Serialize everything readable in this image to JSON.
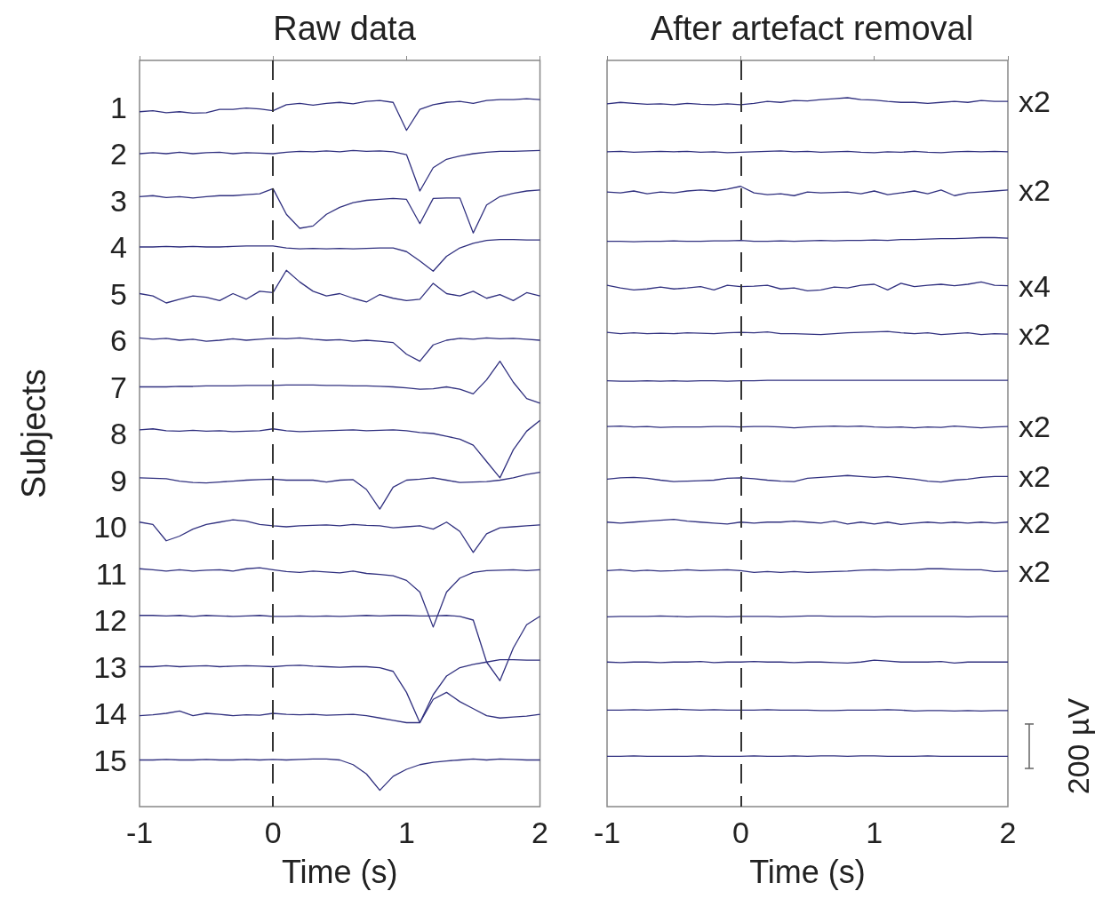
{
  "chart_data": [
    {
      "type": "line",
      "title": "Raw data",
      "xlabel": "Time (s)",
      "ylabel": "Subjects",
      "marker": "none",
      "x": [
        -1,
        -0.9,
        -0.8,
        -0.7,
        -0.6,
        -0.5,
        -0.4,
        -0.3,
        -0.2,
        -0.1,
        0,
        0.1,
        0.2,
        0.3,
        0.4,
        0.5,
        0.6,
        0.7,
        0.8,
        0.9,
        1,
        1.1,
        1.2,
        1.3,
        1.4,
        1.5,
        1.6,
        1.7,
        1.8,
        1.9,
        2
      ],
      "xlim": [
        -1,
        2
      ],
      "xticks": [
        -1,
        0,
        1,
        2
      ],
      "ylim": [
        16,
        0
      ],
      "yticks": [
        1,
        2,
        3,
        4,
        5,
        6,
        7,
        8,
        9,
        10,
        11,
        12,
        13,
        14,
        15
      ],
      "ref_lines": [
        {
          "axis": "x",
          "value": 0,
          "color": "#333333",
          "line_style": "dashed"
        }
      ],
      "series": [
        {
          "color": "#30307f",
          "values": [
            1.1,
            1.08,
            1.12,
            1.1,
            1.13,
            1.12,
            1.05,
            1.05,
            1.02,
            1.04,
            1.08,
            0.95,
            0.92,
            0.96,
            0.92,
            0.9,
            0.93,
            0.88,
            0.86,
            0.9,
            1.5,
            1.05,
            0.95,
            0.9,
            0.88,
            0.92,
            0.86,
            0.84,
            0.84,
            0.82,
            0.84
          ]
        },
        {
          "color": "#30307f",
          "values": [
            2.0,
            1.98,
            2.0,
            1.97,
            2.0,
            1.98,
            1.97,
            2.0,
            1.98,
            1.99,
            2.0,
            1.97,
            1.95,
            1.96,
            1.94,
            1.96,
            1.93,
            1.95,
            1.94,
            1.96,
            2.02,
            2.8,
            2.3,
            2.12,
            2.05,
            2.0,
            1.97,
            1.95,
            1.95,
            1.94,
            1.93
          ]
        },
        {
          "color": "#30307f",
          "values": [
            2.92,
            2.9,
            2.94,
            2.92,
            2.95,
            2.92,
            2.9,
            2.9,
            2.88,
            2.86,
            2.75,
            3.3,
            3.6,
            3.55,
            3.3,
            3.15,
            3.05,
            3.0,
            2.98,
            2.96,
            2.98,
            3.5,
            2.96,
            2.95,
            2.95,
            3.7,
            3.1,
            2.92,
            2.85,
            2.8,
            2.78
          ]
        },
        {
          "color": "#30307f",
          "values": [
            4.0,
            4.0,
            3.99,
            4.0,
            3.99,
            4.0,
            4.0,
            3.99,
            3.98,
            3.98,
            3.98,
            4.02,
            4.04,
            4.03,
            4.04,
            4.03,
            4.04,
            4.03,
            4.02,
            4.02,
            4.1,
            4.3,
            4.52,
            4.2,
            4.02,
            3.92,
            3.86,
            3.84,
            3.84,
            3.85,
            3.85
          ]
        },
        {
          "color": "#30307f",
          "values": [
            5.0,
            5.05,
            5.2,
            5.12,
            5.05,
            5.08,
            5.15,
            5.0,
            5.12,
            4.95,
            4.98,
            4.5,
            4.75,
            4.95,
            5.05,
            5.0,
            5.1,
            5.18,
            5.02,
            5.1,
            5.15,
            5.12,
            4.78,
            5.0,
            5.05,
            4.95,
            5.1,
            5.02,
            5.15,
            4.98,
            5.05
          ]
        },
        {
          "color": "#30307f",
          "values": [
            5.95,
            5.98,
            5.96,
            6.0,
            5.98,
            6.02,
            6.0,
            5.97,
            6.0,
            5.98,
            5.96,
            5.97,
            5.95,
            5.98,
            6.0,
            5.99,
            6.02,
            6.0,
            6.02,
            6.05,
            6.3,
            6.45,
            6.1,
            6.0,
            5.96,
            5.98,
            5.95,
            5.97,
            5.96,
            5.98,
            6.0
          ]
        },
        {
          "color": "#30307f",
          "values": [
            7.0,
            7.0,
            7.0,
            6.99,
            6.99,
            6.98,
            6.98,
            6.98,
            6.97,
            6.97,
            6.97,
            6.96,
            6.96,
            6.96,
            6.97,
            6.97,
            6.98,
            6.98,
            6.99,
            7.0,
            7.02,
            7.05,
            7.04,
            7.0,
            7.05,
            7.15,
            6.85,
            6.45,
            6.9,
            7.25,
            7.35
          ]
        },
        {
          "color": "#30307f",
          "values": [
            7.92,
            7.9,
            7.94,
            7.95,
            7.93,
            7.95,
            7.94,
            7.96,
            7.95,
            7.94,
            7.9,
            7.94,
            7.96,
            7.95,
            7.94,
            7.93,
            7.92,
            7.94,
            7.93,
            7.92,
            7.94,
            7.98,
            8.0,
            8.06,
            8.12,
            8.25,
            8.6,
            8.95,
            8.35,
            7.95,
            7.72
          ]
        },
        {
          "color": "#30307f",
          "values": [
            8.95,
            8.96,
            8.97,
            9.02,
            9.05,
            9.06,
            9.04,
            9.02,
            9.0,
            8.99,
            8.98,
            9.0,
            9.0,
            9.0,
            9.04,
            9.0,
            8.99,
            9.2,
            9.62,
            9.15,
            9.0,
            8.98,
            8.95,
            9.0,
            9.05,
            9.04,
            9.03,
            9.0,
            8.95,
            8.88,
            8.83
          ]
        },
        {
          "color": "#30307f",
          "values": [
            9.9,
            9.95,
            10.3,
            10.2,
            10.05,
            9.95,
            9.9,
            9.85,
            9.88,
            9.95,
            9.98,
            10.0,
            9.98,
            9.97,
            9.96,
            9.98,
            9.95,
            9.97,
            9.98,
            10.02,
            10.0,
            9.98,
            10.05,
            9.9,
            10.1,
            10.55,
            10.15,
            10.02,
            10.0,
            9.98,
            9.96
          ]
        },
        {
          "color": "#30307f",
          "values": [
            10.9,
            10.92,
            10.95,
            10.92,
            10.95,
            10.93,
            10.92,
            10.95,
            10.9,
            10.88,
            10.92,
            10.96,
            10.98,
            10.95,
            10.97,
            10.99,
            10.95,
            11.0,
            11.02,
            11.05,
            11.15,
            11.4,
            12.15,
            11.4,
            11.1,
            10.98,
            10.94,
            10.93,
            10.92,
            10.94,
            10.92
          ]
        },
        {
          "color": "#30307f",
          "values": [
            11.9,
            11.9,
            11.91,
            11.9,
            11.92,
            11.9,
            11.91,
            11.92,
            11.91,
            11.9,
            11.92,
            11.92,
            11.91,
            11.92,
            11.91,
            11.92,
            11.91,
            11.9,
            11.91,
            11.9,
            11.9,
            11.91,
            11.91,
            11.9,
            11.92,
            12.0,
            12.9,
            13.3,
            12.6,
            12.1,
            11.92
          ]
        },
        {
          "color": "#30307f",
          "values": [
            13.0,
            13.0,
            12.98,
            13.0,
            12.99,
            12.98,
            13.0,
            12.99,
            12.98,
            12.99,
            13.0,
            12.98,
            12.97,
            12.99,
            13.0,
            13.01,
            13.0,
            13.0,
            13.02,
            13.1,
            13.55,
            14.2,
            13.6,
            13.2,
            13.02,
            12.95,
            12.9,
            12.85,
            12.85,
            12.86,
            12.86
          ]
        },
        {
          "color": "#30307f",
          "values": [
            14.05,
            14.03,
            14.0,
            13.95,
            14.05,
            14.0,
            14.02,
            14.05,
            14.03,
            14.04,
            14.0,
            14.02,
            14.03,
            14.02,
            14.04,
            14.03,
            14.02,
            14.05,
            14.1,
            14.15,
            14.2,
            14.2,
            13.7,
            13.55,
            13.75,
            13.9,
            14.05,
            14.1,
            14.08,
            14.06,
            14.02
          ]
        },
        {
          "color": "#30307f",
          "values": [
            15.0,
            15.0,
            14.99,
            15.0,
            15.0,
            14.99,
            15.0,
            15.0,
            14.99,
            15.0,
            14.99,
            15.0,
            14.99,
            14.98,
            14.98,
            15.0,
            15.1,
            15.3,
            15.65,
            15.35,
            15.2,
            15.1,
            15.05,
            15.02,
            15.0,
            14.98,
            15.0,
            14.98,
            14.99,
            15.0,
            15.0
          ]
        }
      ]
    },
    {
      "type": "line",
      "title": "After artefact removal",
      "xlabel": "Time (s)",
      "marker": "none",
      "tick_labels": "x",
      "x": [
        -1,
        -0.9,
        -0.8,
        -0.7,
        -0.6,
        -0.5,
        -0.4,
        -0.3,
        -0.2,
        -0.1,
        0,
        0.1,
        0.2,
        0.3,
        0.4,
        0.5,
        0.6,
        0.7,
        0.8,
        0.9,
        1,
        1.1,
        1.2,
        1.3,
        1.4,
        1.5,
        1.6,
        1.7,
        1.8,
        1.9,
        2
      ],
      "xlim": [
        -1,
        2
      ],
      "xticks": [
        -1,
        0,
        1,
        2
      ],
      "ylim": [
        16,
        0
      ],
      "yticks": [
        1,
        2,
        3,
        4,
        5,
        6,
        7,
        8,
        9,
        10,
        11,
        12,
        13,
        14,
        15
      ],
      "ref_lines": [
        {
          "axis": "x",
          "value": 0,
          "color": "#333333",
          "line_style": "dashed"
        }
      ],
      "annotations": [
        "200 µV"
      ],
      "series": [
        {
          "name": "x2",
          "color": "#30307f",
          "values": [
            0.93,
            0.9,
            0.92,
            0.94,
            0.93,
            0.95,
            0.92,
            0.94,
            0.95,
            0.93,
            0.95,
            0.92,
            0.88,
            0.9,
            0.86,
            0.87,
            0.84,
            0.82,
            0.8,
            0.84,
            0.85,
            0.88,
            0.9,
            0.9,
            0.92,
            0.9,
            0.88,
            0.9,
            0.86,
            0.88,
            0.88
          ]
        },
        {
          "color": "#30307f",
          "values": [
            1.96,
            1.95,
            1.97,
            1.96,
            1.95,
            1.96,
            1.95,
            1.97,
            1.96,
            1.98,
            1.97,
            1.96,
            1.95,
            1.94,
            1.96,
            1.95,
            1.97,
            1.96,
            1.95,
            1.97,
            1.98,
            1.96,
            1.97,
            1.95,
            1.97,
            1.98,
            1.96,
            1.95,
            1.96,
            1.95,
            1.96
          ]
        },
        {
          "name": "x2",
          "color": "#30307f",
          "values": [
            2.82,
            2.84,
            2.8,
            2.86,
            2.82,
            2.84,
            2.8,
            2.78,
            2.8,
            2.76,
            2.7,
            2.84,
            2.88,
            2.86,
            2.9,
            2.82,
            2.84,
            2.83,
            2.82,
            2.86,
            2.8,
            2.88,
            2.84,
            2.8,
            2.86,
            2.78,
            2.9,
            2.84,
            2.82,
            2.8,
            2.78
          ]
        },
        {
          "color": "#30307f",
          "values": [
            3.88,
            3.88,
            3.89,
            3.88,
            3.88,
            3.87,
            3.88,
            3.88,
            3.87,
            3.87,
            3.86,
            3.88,
            3.88,
            3.87,
            3.88,
            3.87,
            3.86,
            3.87,
            3.86,
            3.86,
            3.85,
            3.86,
            3.84,
            3.84,
            3.83,
            3.82,
            3.82,
            3.81,
            3.8,
            3.8,
            3.81
          ]
        },
        {
          "name": "x4",
          "color": "#30307f",
          "values": [
            4.82,
            4.88,
            4.92,
            4.9,
            4.86,
            4.9,
            4.88,
            4.85,
            4.92,
            4.82,
            4.85,
            4.84,
            4.82,
            4.9,
            4.88,
            4.94,
            4.92,
            4.86,
            4.88,
            4.82,
            4.8,
            4.92,
            4.78,
            4.85,
            4.82,
            4.8,
            4.83,
            4.8,
            4.75,
            4.82,
            4.83
          ]
        },
        {
          "name": "x2",
          "color": "#30307f",
          "values": [
            5.83,
            5.86,
            5.84,
            5.86,
            5.85,
            5.86,
            5.84,
            5.85,
            5.86,
            5.84,
            5.83,
            5.84,
            5.82,
            5.86,
            5.86,
            5.87,
            5.88,
            5.86,
            5.84,
            5.83,
            5.82,
            5.81,
            5.84,
            5.86,
            5.84,
            5.88,
            5.86,
            5.84,
            5.88,
            5.86,
            5.87
          ]
        },
        {
          "color": "#30307f",
          "values": [
            6.87,
            6.88,
            6.88,
            6.87,
            6.88,
            6.87,
            6.88,
            6.87,
            6.87,
            6.88,
            6.87,
            6.87,
            6.86,
            6.86,
            6.86,
            6.86,
            6.86,
            6.86,
            6.86,
            6.86,
            6.86,
            6.86,
            6.86,
            6.86,
            6.86,
            6.86,
            6.86,
            6.86,
            6.86,
            6.86,
            6.86
          ]
        },
        {
          "name": "x2",
          "color": "#30307f",
          "values": [
            7.85,
            7.84,
            7.86,
            7.85,
            7.87,
            7.86,
            7.86,
            7.86,
            7.85,
            7.85,
            7.86,
            7.85,
            7.85,
            7.86,
            7.88,
            7.86,
            7.85,
            7.84,
            7.85,
            7.84,
            7.86,
            7.87,
            7.86,
            7.88,
            7.86,
            7.87,
            7.84,
            7.86,
            7.88,
            7.86,
            7.85
          ]
        },
        {
          "name": "x2",
          "color": "#30307f",
          "values": [
            8.98,
            8.95,
            8.94,
            8.96,
            9.0,
            9.03,
            9.02,
            9.01,
            9.0,
            8.96,
            8.95,
            8.97,
            9.0,
            9.02,
            9.03,
            8.96,
            8.94,
            8.92,
            8.9,
            8.92,
            8.94,
            8.92,
            8.95,
            8.98,
            9.02,
            9.04,
            9.0,
            8.98,
            8.94,
            8.92,
            8.92
          ]
        },
        {
          "name": "x2",
          "color": "#30307f",
          "values": [
            9.9,
            9.92,
            9.9,
            9.88,
            9.86,
            9.84,
            9.88,
            9.9,
            9.92,
            9.94,
            9.9,
            9.92,
            9.9,
            9.9,
            9.88,
            9.9,
            9.92,
            9.88,
            9.94,
            9.9,
            9.94,
            9.9,
            9.95,
            9.92,
            9.9,
            9.92,
            9.9,
            9.92,
            9.9,
            9.92,
            9.9
          ]
        },
        {
          "name": "x2",
          "color": "#30307f",
          "values": [
            10.94,
            10.92,
            10.95,
            10.93,
            10.95,
            10.94,
            10.92,
            10.94,
            10.93,
            10.92,
            10.94,
            10.98,
            10.96,
            10.98,
            10.96,
            10.98,
            10.97,
            10.96,
            10.95,
            10.93,
            10.92,
            10.93,
            10.92,
            10.92,
            10.9,
            10.9,
            10.91,
            10.92,
            10.92,
            10.96,
            10.95
          ]
        },
        {
          "color": "#30307f",
          "values": [
            11.93,
            11.92,
            11.92,
            11.92,
            11.91,
            11.92,
            11.93,
            11.92,
            11.92,
            11.93,
            11.92,
            11.92,
            11.92,
            11.93,
            11.92,
            11.91,
            11.91,
            11.92,
            11.92,
            11.92,
            11.93,
            11.92,
            11.92,
            11.92,
            11.92,
            11.92,
            11.92,
            11.93,
            11.92,
            11.92,
            11.92
          ]
        },
        {
          "color": "#30307f",
          "values": [
            12.9,
            12.91,
            12.9,
            12.9,
            12.91,
            12.9,
            12.9,
            12.89,
            12.91,
            12.9,
            12.9,
            12.89,
            12.9,
            12.9,
            12.91,
            12.9,
            12.9,
            12.91,
            12.92,
            12.9,
            12.86,
            12.88,
            12.9,
            12.9,
            12.9,
            12.89,
            12.92,
            12.9,
            12.9,
            12.9,
            12.9
          ]
        },
        {
          "color": "#30307f",
          "values": [
            13.93,
            13.93,
            13.92,
            13.93,
            13.92,
            13.91,
            13.92,
            13.93,
            13.92,
            13.93,
            13.93,
            13.93,
            13.92,
            13.93,
            13.93,
            13.93,
            13.94,
            13.94,
            13.93,
            13.93,
            13.93,
            13.92,
            13.93,
            13.95,
            13.94,
            13.94,
            13.95,
            13.94,
            13.95,
            13.94,
            13.94
          ]
        },
        {
          "color": "#30307f",
          "values": [
            14.92,
            14.92,
            14.91,
            14.92,
            14.92,
            14.92,
            14.92,
            14.91,
            14.92,
            14.92,
            14.92,
            14.91,
            14.92,
            14.92,
            14.91,
            14.92,
            14.91,
            14.91,
            14.92,
            14.91,
            14.91,
            14.92,
            14.92,
            14.92,
            14.91,
            14.92,
            14.92,
            14.92,
            14.92,
            14.92,
            14.92
          ]
        }
      ]
    }
  ]
}
